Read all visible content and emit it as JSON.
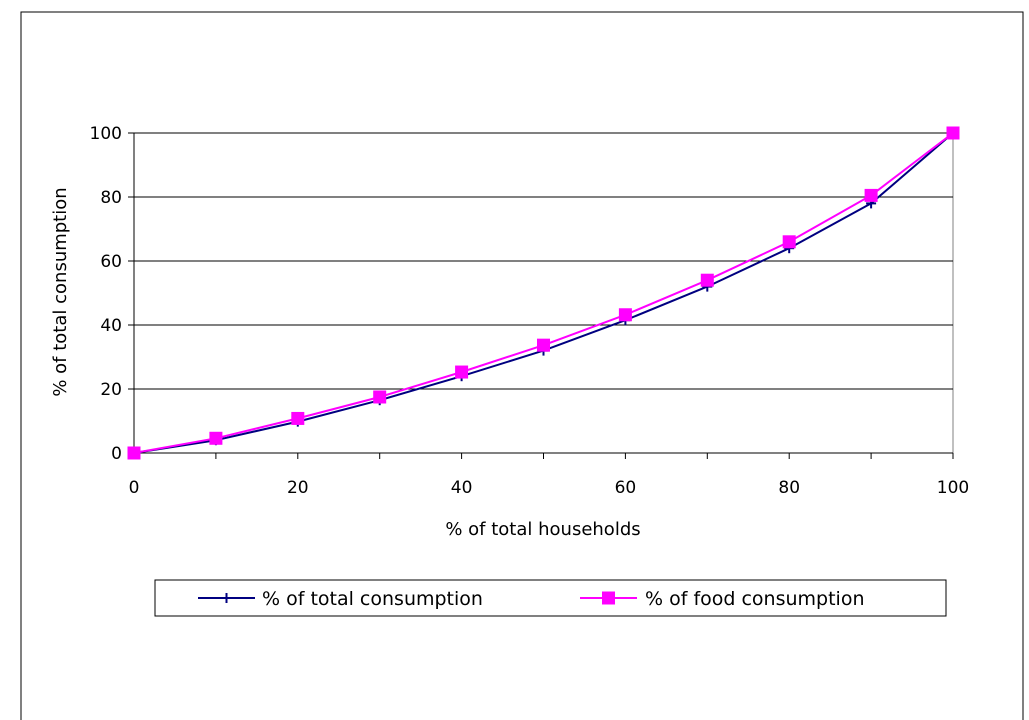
{
  "chart_data": {
    "type": "line",
    "xlabel": "% of total households",
    "ylabel": "% of total consumption",
    "xlim": [
      0,
      100
    ],
    "ylim": [
      0,
      100
    ],
    "x_ticks": [
      "0",
      "20",
      "40",
      "60",
      "80",
      "100"
    ],
    "y_ticks": [
      "0",
      "20",
      "40",
      "60",
      "80",
      "100"
    ],
    "grid": "horizontal",
    "legend_position": "bottom",
    "series": [
      {
        "name": "% of total consumption",
        "color": "#000080",
        "marker": "plus",
        "x": [
          0,
          10,
          20,
          30,
          40,
          50,
          60,
          70,
          80,
          90,
          100
        ],
        "y": [
          0,
          4,
          9.8,
          16.5,
          24,
          32,
          41.5,
          52,
          64,
          78,
          100
        ]
      },
      {
        "name": "% of food consumption",
        "color": "#ff00ff",
        "marker": "square",
        "x": [
          0,
          10,
          20,
          30,
          40,
          50,
          60,
          70,
          80,
          90,
          100
        ],
        "y": [
          0,
          4.6,
          10.8,
          17.5,
          25.3,
          33.7,
          43.2,
          54,
          66,
          80.5,
          100
        ]
      }
    ]
  }
}
